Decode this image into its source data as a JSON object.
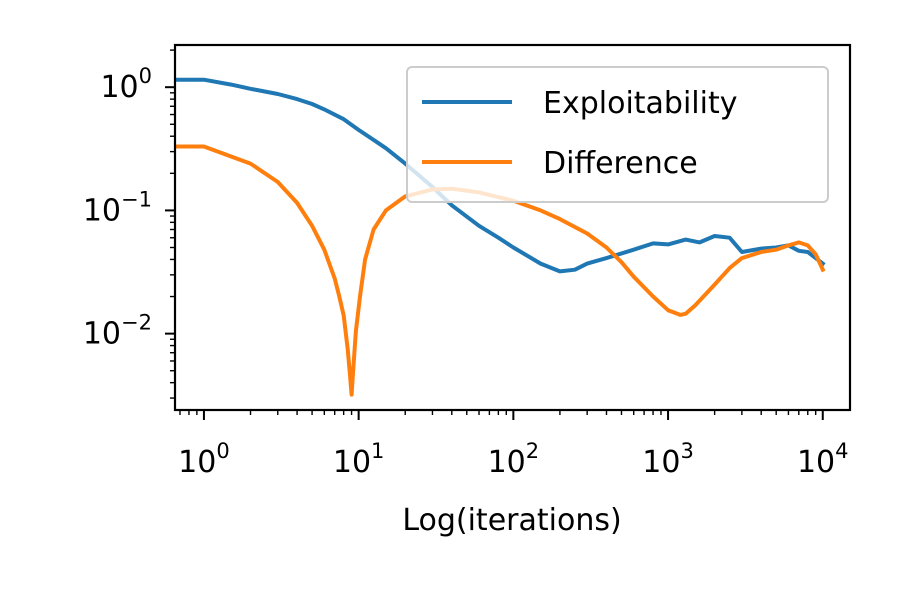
{
  "chart_data": {
    "type": "line",
    "xlabel": "Log(iterations)",
    "ylabel": "",
    "xscale": "log",
    "yscale": "log",
    "xlim": [
      0.65,
      15000
    ],
    "ylim": [
      0.0024,
      2.2
    ],
    "grid": false,
    "legend_position": "top-right",
    "x_ticks": [
      {
        "base": "10",
        "exp": "0",
        "value": 1
      },
      {
        "base": "10",
        "exp": "1",
        "value": 10
      },
      {
        "base": "10",
        "exp": "2",
        "value": 100
      },
      {
        "base": "10",
        "exp": "3",
        "value": 1000
      },
      {
        "base": "10",
        "exp": "4",
        "value": 10000
      }
    ],
    "y_ticks": [
      {
        "base": "10",
        "exp": "0",
        "value": 1
      },
      {
        "base": "10",
        "exp": "−1",
        "value": 0.1
      },
      {
        "base": "10",
        "exp": "−2",
        "value": 0.01
      }
    ],
    "series": [
      {
        "name": "Exploitability",
        "color": "#1f77b4",
        "x": [
          0.65,
          1,
          1.5,
          2,
          3,
          4,
          5,
          6,
          8,
          10,
          15,
          20,
          30,
          40,
          60,
          80,
          100,
          150,
          200,
          250,
          300,
          400,
          600,
          800,
          1000,
          1300,
          1600,
          2000,
          2500,
          3000,
          4000,
          5000,
          6000,
          7000,
          8000,
          10000
        ],
        "y": [
          1.15,
          1.15,
          1.05,
          0.97,
          0.88,
          0.8,
          0.73,
          0.66,
          0.55,
          0.45,
          0.32,
          0.24,
          0.155,
          0.11,
          0.075,
          0.06,
          0.05,
          0.037,
          0.032,
          0.033,
          0.037,
          0.041,
          0.048,
          0.054,
          0.053,
          0.058,
          0.055,
          0.062,
          0.06,
          0.046,
          0.049,
          0.05,
          0.052,
          0.047,
          0.046,
          0.037
        ]
      },
      {
        "name": "Difference",
        "color": "#ff7f0e",
        "x": [
          0.65,
          1,
          2,
          3,
          4,
          5,
          6,
          7,
          7.5,
          8,
          8.5,
          8.8,
          9,
          9.2,
          9.6,
          10.2,
          11,
          12.5,
          15,
          20,
          30,
          40,
          60,
          100,
          150,
          200,
          300,
          400,
          500,
          600,
          800,
          1000,
          1200,
          1300,
          1500,
          2000,
          2500,
          3000,
          4000,
          5000,
          6000,
          7000,
          8000,
          9000,
          10000
        ],
        "y": [
          0.33,
          0.33,
          0.24,
          0.17,
          0.115,
          0.075,
          0.048,
          0.028,
          0.02,
          0.014,
          0.0075,
          0.0045,
          0.0032,
          0.0048,
          0.0105,
          0.02,
          0.04,
          0.07,
          0.1,
          0.13,
          0.148,
          0.15,
          0.14,
          0.12,
          0.1,
          0.085,
          0.065,
          0.05,
          0.038,
          0.029,
          0.02,
          0.0155,
          0.0142,
          0.0145,
          0.017,
          0.025,
          0.034,
          0.041,
          0.046,
          0.048,
          0.052,
          0.055,
          0.052,
          0.044,
          0.033
        ]
      }
    ]
  }
}
